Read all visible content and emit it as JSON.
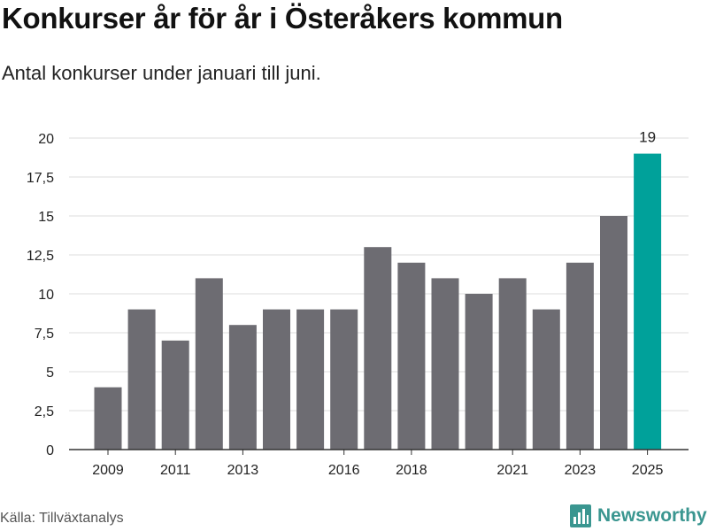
{
  "title": "Konkurser år för år i Österåkers kommun",
  "subtitle": "Antal konkurser under januari till juni.",
  "source": "Källa: Tillväxtanalys",
  "brand": {
    "name": "Newsworthy",
    "icon": "bar-chart-logo-icon",
    "color": "#3a9690"
  },
  "colors": {
    "bar": "#6d6c72",
    "highlight": "#00a19a",
    "grid": "#dddddd",
    "axis": "#333333"
  },
  "chart_data": {
    "type": "bar",
    "categories": [
      "2009",
      "2010",
      "2011",
      "2012",
      "2013",
      "2014",
      "2015",
      "2016",
      "2017",
      "2018",
      "2019",
      "2020",
      "2021",
      "2022",
      "2023",
      "2024",
      "2025"
    ],
    "values": [
      4,
      9,
      7,
      11,
      8,
      9,
      9,
      9,
      13,
      12,
      11,
      10,
      11,
      9,
      12,
      15,
      19
    ],
    "x_tick_labels": [
      "2009",
      "2011",
      "2013",
      "2016",
      "2018",
      "2021",
      "2023",
      "2025"
    ],
    "y_ticks": [
      0,
      2.5,
      5,
      7.5,
      10,
      12.5,
      15,
      17.5,
      20
    ],
    "y_tick_labels": [
      "0",
      "2,5",
      "5",
      "7,5",
      "10",
      "12,5",
      "15",
      "17,5",
      "20"
    ],
    "ylim": [
      0,
      20
    ],
    "highlight_category": "2025",
    "data_labels": [
      {
        "category": "2025",
        "text": "19"
      }
    ],
    "grid": true,
    "legend": false,
    "title": "Konkurser år för år i Österåkers kommun",
    "subtitle": "Antal konkurser under januari till juni.",
    "xlabel": "",
    "ylabel": ""
  }
}
